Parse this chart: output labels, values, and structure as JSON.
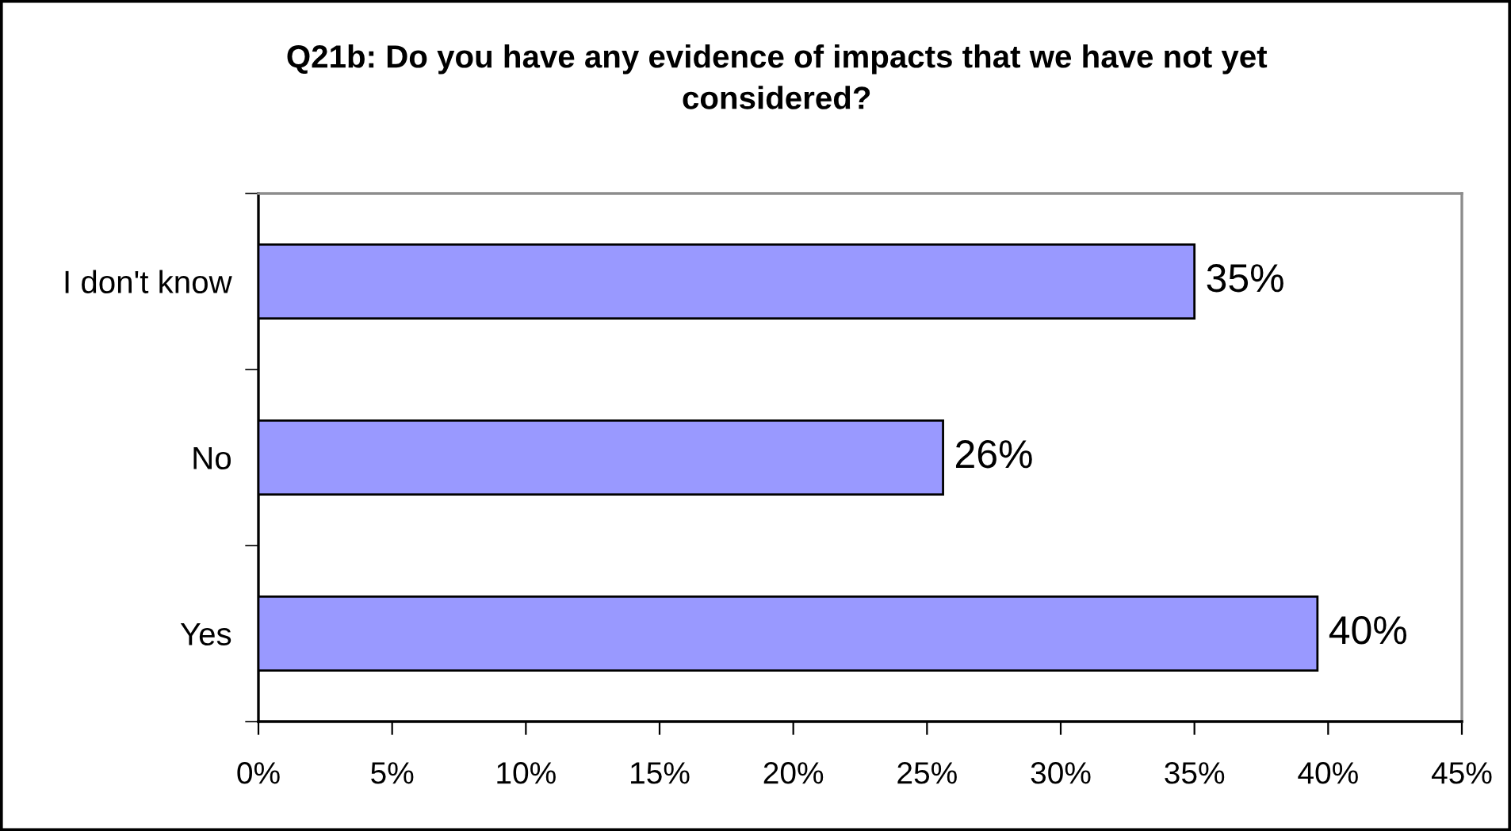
{
  "chart_data": {
    "type": "bar",
    "orientation": "horizontal",
    "title": "Q21b: Do you have any evidence of impacts that we have not yet\nconsidered?",
    "categories": [
      "I don't know",
      "No",
      "Yes"
    ],
    "values": [
      35.0,
      25.6,
      39.6
    ],
    "value_labels": [
      "35%",
      "26%",
      "40%"
    ],
    "color": "#9999ff",
    "xlim": [
      0,
      45
    ],
    "xticks": [
      {
        "value": 0,
        "label": "0%"
      },
      {
        "value": 5,
        "label": "5%"
      },
      {
        "value": 10,
        "label": "10%"
      },
      {
        "value": 15,
        "label": "15%"
      },
      {
        "value": 20,
        "label": "20%"
      },
      {
        "value": 25,
        "label": "25%"
      },
      {
        "value": 30,
        "label": "30%"
      },
      {
        "value": 35,
        "label": "35%"
      },
      {
        "value": 40,
        "label": "40%"
      },
      {
        "value": 45,
        "label": "45%"
      }
    ],
    "grid": false
  }
}
